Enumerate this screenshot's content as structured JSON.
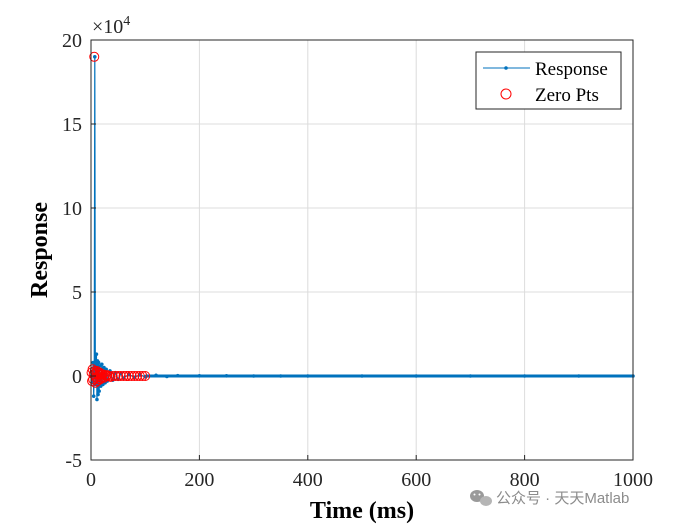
{
  "chart_data": {
    "type": "line",
    "xlabel": "Time (ms)",
    "ylabel": "Response",
    "xlim": [
      0,
      1000
    ],
    "ylim": [
      -5,
      20
    ],
    "y_multiplier_label": "×10",
    "y_multiplier_exponent": "4",
    "xticks": [
      0,
      200,
      400,
      600,
      800,
      1000
    ],
    "yticks": [
      -5,
      0,
      5,
      10,
      15,
      20
    ],
    "grid": true,
    "legend_position": "top-right",
    "legend": [
      "Response",
      "Zero Pts"
    ],
    "colors": {
      "response": "#0072BD",
      "zero_pts": "#FF0000"
    },
    "series": [
      {
        "name": "Response",
        "style": "line-with-dots",
        "x": [
          0,
          2,
          4,
          5,
          6,
          7,
          8,
          9,
          10,
          11,
          12,
          13,
          14,
          15,
          16,
          18,
          20,
          22,
          24,
          26,
          28,
          30,
          35,
          40,
          45,
          50,
          55,
          60,
          70,
          80,
          90,
          100,
          120,
          140,
          160,
          200,
          250,
          300,
          350,
          400,
          500,
          600,
          700,
          800,
          900,
          1000
        ],
        "y": [
          0,
          -0.4,
          0.8,
          -1.2,
          0.5,
          19,
          -0.5,
          0.3,
          1.3,
          -1.4,
          0.9,
          -1.1,
          0.8,
          -0.9,
          0.6,
          -0.6,
          0.7,
          -0.5,
          0.5,
          -0.4,
          0.4,
          -0.3,
          0.3,
          -0.25,
          0.2,
          -0.2,
          0.15,
          -0.12,
          0.1,
          -0.08,
          0.07,
          -0.05,
          0.04,
          -0.03,
          0.02,
          0.01,
          0.01,
          0,
          0,
          0,
          0,
          0,
          0,
          0,
          0,
          0
        ]
      },
      {
        "name": "Zero Pts",
        "style": "circle-markers",
        "x": [
          1,
          2,
          3,
          4,
          5,
          6,
          7,
          8,
          9,
          10,
          11,
          12,
          13,
          14,
          15,
          16,
          17,
          18,
          19,
          20,
          22,
          24,
          26,
          28,
          30,
          33,
          36,
          40,
          45,
          50,
          55,
          60,
          65,
          70,
          75,
          80,
          85,
          90,
          95,
          100
        ],
        "y": [
          0.2,
          -0.3,
          0.4,
          -0.2,
          0.1,
          19,
          0.3,
          -0.4,
          0.2,
          -0.1,
          0.3,
          -0.3,
          0.2,
          -0.2,
          0.1,
          0.2,
          -0.2,
          0.1,
          -0.1,
          0.1,
          0.1,
          -0.1,
          0.05,
          0,
          0.05,
          0,
          -0.05,
          0,
          0,
          0,
          0,
          0,
          0,
          0,
          0,
          0,
          0,
          0,
          0,
          0
        ]
      }
    ]
  },
  "watermark": "公众号 · 天天Matlab"
}
